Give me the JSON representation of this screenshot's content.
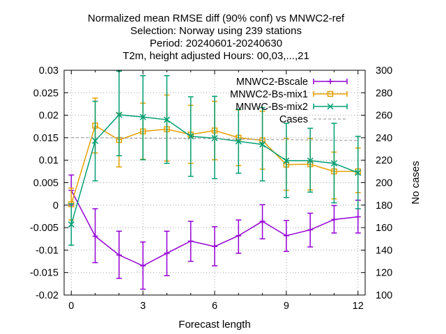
{
  "chart_data": {
    "type": "line",
    "title_lines": [
      "Normalized mean RMSE diff (90% conf) vs MNWC2-ref",
      "Selection: Norway using   239 stations",
      "Period: 20240601-20240630",
      "T2m, height adjusted   Hours: 00,03,...,21"
    ],
    "xlabel": "Forecast length",
    "ylabel": "",
    "y2label": "No cases",
    "xlim": [
      -0.3,
      12.3
    ],
    "ylim": [
      -0.02,
      0.03
    ],
    "y2lim": [
      100,
      300
    ],
    "xticks": [
      0,
      3,
      6,
      9,
      12
    ],
    "xtick_labels": [
      "0",
      "3",
      "6",
      "9",
      "12"
    ],
    "yticks": [
      -0.02,
      -0.015,
      -0.01,
      -0.005,
      0,
      0.005,
      0.01,
      0.015,
      0.02,
      0.025,
      0.03
    ],
    "ytick_labels": [
      "-0.02",
      "-0.015",
      "-0.01",
      "-0.005",
      "0",
      "0.005",
      "0.01",
      "0.015",
      "0.02",
      "0.025",
      "0.03"
    ],
    "y2ticks": [
      100,
      120,
      140,
      160,
      180,
      200,
      220,
      240,
      260,
      280,
      300
    ],
    "y2tick_labels": [
      "100",
      "120",
      "140",
      "160",
      "180",
      "200",
      "220",
      "240",
      "260",
      "280",
      "300"
    ],
    "grid": true,
    "legend_position": "top-right",
    "x": [
      0,
      1,
      2,
      3,
      4,
      5,
      6,
      7,
      8,
      9,
      10,
      11,
      12
    ],
    "series": [
      {
        "name": "MNWC2-Bscale",
        "color": "#9400d3",
        "marker": "plus",
        "values": [
          0.0033,
          -0.0069,
          -0.0111,
          -0.0135,
          -0.0107,
          -0.008,
          -0.0092,
          -0.0068,
          -0.0036,
          -0.0068,
          -0.0055,
          -0.0032,
          -0.0026
        ],
        "err_low": [
          0.0,
          -0.0128,
          -0.0163,
          -0.0187,
          -0.0157,
          -0.0125,
          -0.0135,
          -0.0107,
          -0.0075,
          -0.0103,
          -0.0093,
          -0.0062,
          -0.0062
        ],
        "err_high": [
          0.0067,
          -0.0008,
          -0.0058,
          -0.0082,
          -0.0058,
          -0.0036,
          -0.0048,
          -0.0033,
          0.0001,
          -0.0034,
          -0.0018,
          -0.0001,
          0.0011
        ]
      },
      {
        "name": "MNWC2-Bs-mix1",
        "color": "#e69f00",
        "marker": "square",
        "values": [
          0.0002,
          0.0177,
          0.0145,
          0.0164,
          0.0169,
          0.0157,
          0.0166,
          0.015,
          0.0144,
          0.009,
          0.0091,
          0.0075,
          0.0075
        ],
        "err_low": [
          -0.0033,
          0.0116,
          0.0085,
          0.0102,
          0.0098,
          0.0093,
          0.0101,
          0.0088,
          0.008,
          0.0033,
          0.0034,
          0.0014,
          0.0028
        ],
        "err_high": [
          0.0038,
          0.0238,
          0.0204,
          0.0227,
          0.0245,
          0.0222,
          0.0231,
          0.0212,
          0.0209,
          0.0148,
          0.0148,
          0.0118,
          0.0127
        ]
      },
      {
        "name": "MNWC-Bs-mix2",
        "color": "#009e73",
        "marker": "cross",
        "values": [
          -0.0043,
          0.0143,
          0.0201,
          0.0196,
          0.019,
          0.0153,
          0.0149,
          0.0142,
          0.0135,
          0.0099,
          0.0099,
          0.0093,
          0.0072
        ],
        "err_low": [
          -0.0089,
          0.0054,
          0.011,
          0.0101,
          0.0093,
          0.0064,
          0.0059,
          0.0071,
          0.0054,
          0.0017,
          0.0029,
          0.0005,
          -0.0008
        ],
        "err_high": [
          0.0003,
          0.0231,
          0.0298,
          0.0288,
          0.0288,
          0.0241,
          0.0242,
          0.0213,
          0.0217,
          0.0182,
          0.0171,
          0.0182,
          0.0153
        ]
      },
      {
        "name": "Cases",
        "color": "#a0a0a0",
        "axis": "y2",
        "style": "dashed",
        "values": [
          240,
          240,
          239.7,
          239.5,
          239.4,
          239.2,
          239,
          238.7,
          238.4,
          238.2,
          238,
          237.8,
          237.6
        ]
      }
    ]
  }
}
